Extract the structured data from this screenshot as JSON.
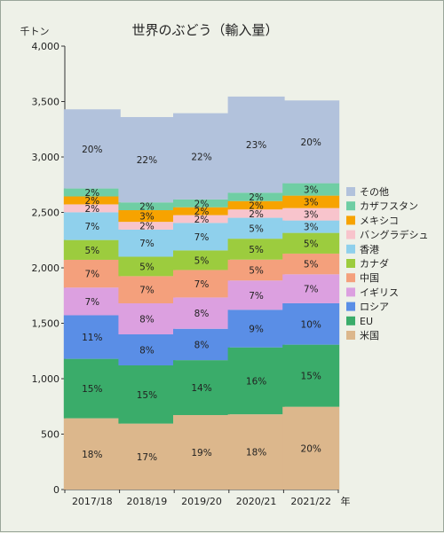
{
  "chart_data": {
    "type": "bar",
    "stacked": true,
    "title": "世界のぶどう（輸入量）",
    "ylabel": "千トン",
    "xlabel": "年",
    "ylim": [
      0,
      4000
    ],
    "ytick_step": 500,
    "yticks": [
      "0",
      "500",
      "1,000",
      "1,500",
      "2,000",
      "2,500",
      "3,000",
      "3,500",
      "4,000"
    ],
    "categories": [
      "2017/18",
      "2018/19",
      "2019/20",
      "2020/21",
      "2021/22"
    ],
    "totals": [
      3430,
      3360,
      3395,
      3545,
      3510
    ],
    "grid": false,
    "legend_position": "right",
    "series": [
      {
        "name": "米国",
        "color": "#dcb78c",
        "percents": [
          18,
          17,
          19,
          18,
          20
        ]
      },
      {
        "name": "EU",
        "color": "#3aac6a",
        "percents": [
          15,
          15,
          14,
          16,
          15
        ]
      },
      {
        "name": "ロシア",
        "color": "#5a8ee6",
        "percents": [
          11,
          8,
          8,
          9,
          10
        ]
      },
      {
        "name": "イギリス",
        "color": "#dca0e0",
        "percents": [
          7,
          8,
          8,
          7,
          7
        ]
      },
      {
        "name": "中国",
        "color": "#f4a07c",
        "percents": [
          7,
          7,
          7,
          5,
          5
        ]
      },
      {
        "name": "カナダ",
        "color": "#9ccc3e",
        "percents": [
          5,
          5,
          5,
          5,
          5
        ]
      },
      {
        "name": "香港",
        "color": "#8fd0ec",
        "percents": [
          7,
          7,
          7,
          5,
          3
        ]
      },
      {
        "name": "バングラデシュ",
        "color": "#f8c4cc",
        "percents": [
          2,
          2,
          2,
          2,
          3
        ]
      },
      {
        "name": "メキシコ",
        "color": "#f7a300",
        "percents": [
          2,
          3,
          2,
          2,
          3
        ]
      },
      {
        "name": "カザフスタン",
        "color": "#6fcea4",
        "percents": [
          2,
          2,
          2,
          2,
          3
        ]
      },
      {
        "name": "その他",
        "color": "#b2c2dc",
        "percents": [
          20,
          22,
          22,
          23,
          20
        ]
      }
    ]
  }
}
